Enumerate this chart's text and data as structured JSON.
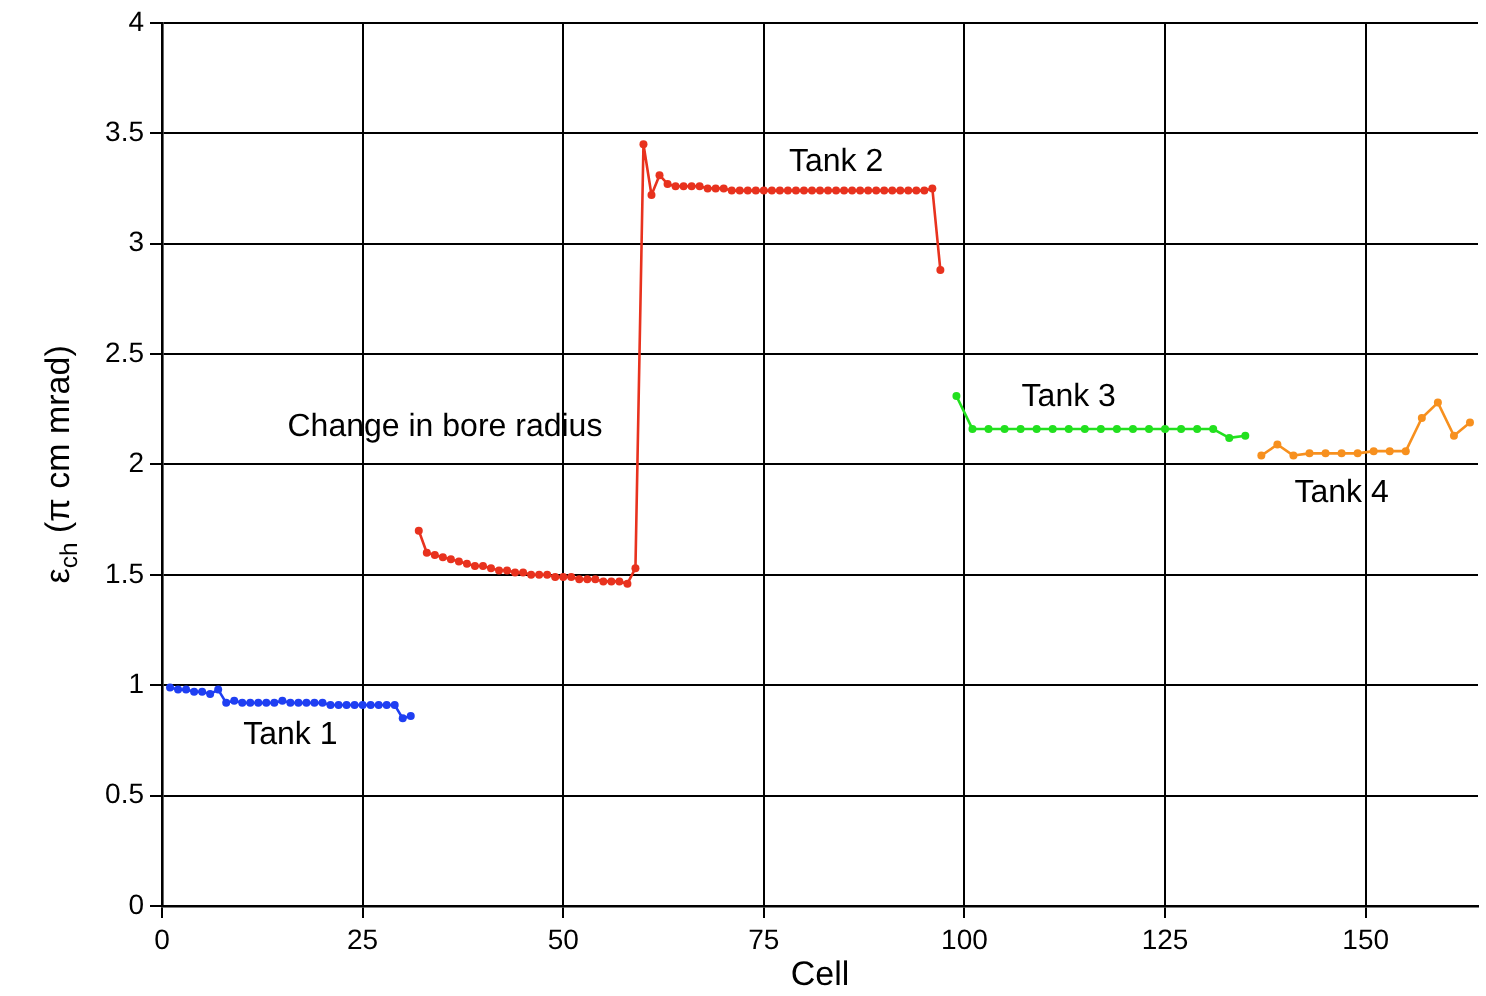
{
  "chart_data": {
    "type": "line",
    "xlabel": "Cell",
    "ylabel": "ε$_{ch}$ (π cm mrad)",
    "xlim": [
      0,
      164
    ],
    "xticks": [
      0,
      25,
      50,
      75,
      100,
      125,
      150
    ],
    "ylim": [
      0,
      4
    ],
    "yticks": [
      0,
      0.5,
      1,
      1.5,
      2,
      2.5,
      3,
      3.5,
      4
    ],
    "grid": true,
    "legend": false,
    "marker": "circle",
    "line_style": "solid",
    "series": [
      {
        "name": "Tank 1",
        "color": "#1f3ff2",
        "x": [
          1,
          2,
          3,
          4,
          5,
          6,
          7,
          8,
          9,
          10,
          11,
          12,
          13,
          14,
          15,
          16,
          17,
          18,
          19,
          20,
          21,
          22,
          23,
          24,
          25,
          26,
          27,
          28,
          29,
          30,
          31
        ],
        "values": [
          0.99,
          0.98,
          0.98,
          0.97,
          0.97,
          0.96,
          0.98,
          0.92,
          0.93,
          0.92,
          0.92,
          0.92,
          0.92,
          0.92,
          0.93,
          0.92,
          0.92,
          0.92,
          0.92,
          0.92,
          0.91,
          0.91,
          0.91,
          0.91,
          0.91,
          0.91,
          0.91,
          0.91,
          0.91,
          0.85,
          0.86
        ]
      },
      {
        "name": "Tank 2",
        "color": "#e8321e",
        "x": [
          32,
          33,
          34,
          35,
          36,
          37,
          38,
          39,
          40,
          41,
          42,
          43,
          44,
          45,
          46,
          47,
          48,
          49,
          50,
          51,
          52,
          53,
          54,
          55,
          56,
          57,
          58,
          59,
          60,
          61,
          62,
          63,
          64,
          65,
          66,
          67,
          68,
          69,
          70,
          71,
          72,
          73,
          74,
          75,
          76,
          77,
          78,
          79,
          80,
          81,
          82,
          83,
          84,
          85,
          86,
          87,
          88,
          89,
          90,
          91,
          92,
          93,
          94,
          95,
          96,
          97
        ],
        "values": [
          1.7,
          1.6,
          1.59,
          1.58,
          1.57,
          1.56,
          1.55,
          1.54,
          1.54,
          1.53,
          1.52,
          1.52,
          1.51,
          1.51,
          1.5,
          1.5,
          1.5,
          1.49,
          1.49,
          1.49,
          1.48,
          1.48,
          1.48,
          1.47,
          1.47,
          1.47,
          1.46,
          1.53,
          3.45,
          3.22,
          3.31,
          3.27,
          3.26,
          3.26,
          3.26,
          3.26,
          3.25,
          3.25,
          3.25,
          3.24,
          3.24,
          3.24,
          3.24,
          3.24,
          3.24,
          3.24,
          3.24,
          3.24,
          3.24,
          3.24,
          3.24,
          3.24,
          3.24,
          3.24,
          3.24,
          3.24,
          3.24,
          3.24,
          3.24,
          3.24,
          3.24,
          3.24,
          3.24,
          3.24,
          3.25,
          2.88
        ]
      },
      {
        "name": "Tank 3",
        "color": "#22e01e",
        "x": [
          99,
          101,
          103,
          105,
          107,
          109,
          111,
          113,
          115,
          117,
          119,
          121,
          123,
          125,
          127,
          129,
          131,
          133,
          135
        ],
        "values": [
          2.31,
          2.16,
          2.16,
          2.16,
          2.16,
          2.16,
          2.16,
          2.16,
          2.16,
          2.16,
          2.16,
          2.16,
          2.16,
          2.16,
          2.16,
          2.16,
          2.16,
          2.12,
          2.13
        ]
      },
      {
        "name": "Tank 4",
        "color": "#f7901e",
        "x": [
          137,
          139,
          141,
          143,
          145,
          147,
          149,
          151,
          153,
          155,
          157,
          159,
          161,
          163
        ],
        "values": [
          2.04,
          2.09,
          2.04,
          2.05,
          2.05,
          2.05,
          2.05,
          2.06,
          2.06,
          2.06,
          2.21,
          2.28,
          2.13,
          2.19
        ]
      }
    ],
    "annotations": [
      "Change in bore radius"
    ]
  }
}
